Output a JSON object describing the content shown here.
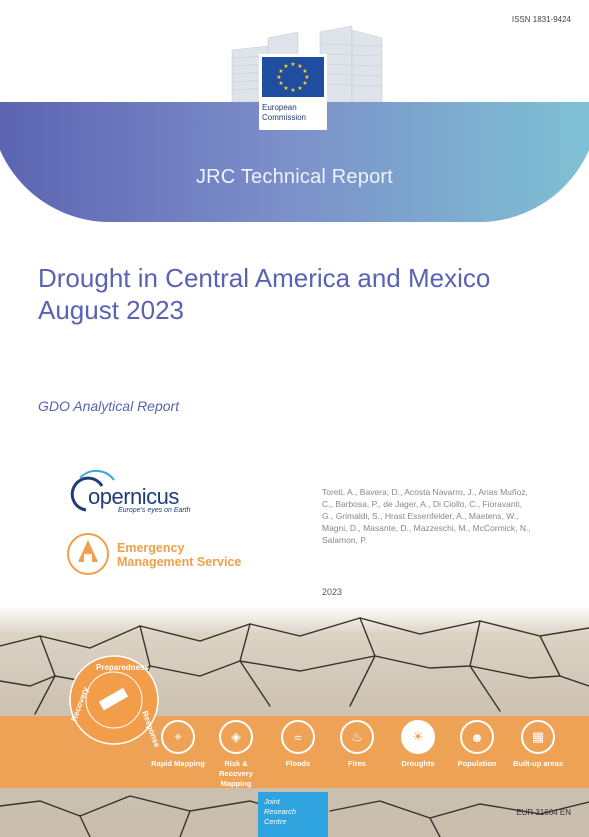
{
  "header": {
    "issn": "ISSN 1831-9424",
    "publisher": "European Commission",
    "report_type": "JRC Technical Report"
  },
  "document": {
    "title_line1": "Drought in Central America and Mexico",
    "title_line2": "August 2023",
    "subtitle": "GDO Analytical Report",
    "authors": "Toreti, A., Bavera, D., Acosta Navarro, J., Arias Muñoz, C., Barbosa, P., de Jager, A., Di Ciollo, C., Fioravanti, G., Grimaldi, S., Hrast Essenfelder, A., Maetens, W., Magni, D., Masante, D., Mazzeschi, M., McCormick, N., Salamon, P.",
    "year": "2023",
    "eur_number": "EUR 31664 EN"
  },
  "logos": {
    "copernicus_word": "opernicus",
    "copernicus_tagline": "Europe's eyes on Earth",
    "ems_line1": "Emergency",
    "ems_line2": "Management Service",
    "cycle_labels": [
      "Preparedness",
      "Response",
      "Recovery"
    ],
    "jrc_line1": "Joint",
    "jrc_line2": "Research",
    "jrc_line3": "Centre"
  },
  "services": [
    {
      "label": "Rapid Mapping",
      "icon": "pin-icon"
    },
    {
      "label": "Risk & Recovery Mapping",
      "icon": "shield-icon"
    },
    {
      "label": "Floods",
      "icon": "wave-icon"
    },
    {
      "label": "Fires",
      "icon": "flame-icon"
    },
    {
      "label": "Droughts",
      "icon": "sun-icon"
    },
    {
      "label": "Population",
      "icon": "people-icon"
    },
    {
      "label": "Built-up areas",
      "icon": "building-icon"
    }
  ],
  "colors": {
    "title": "#5a63b3",
    "banner_start": "#5b63b1",
    "banner_end": "#7fc3d4",
    "ems_orange": "#f0a04b",
    "eu_blue": "#1f4da0",
    "jrc_blue": "#2fa3dd"
  }
}
